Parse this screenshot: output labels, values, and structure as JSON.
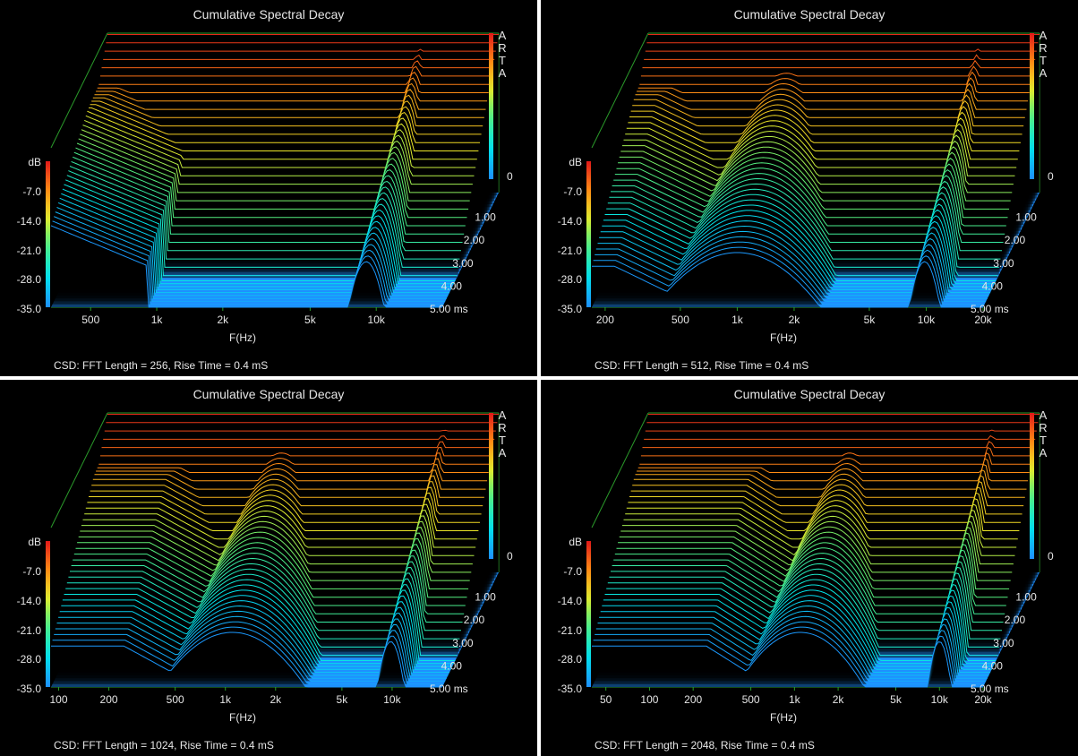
{
  "colors": {
    "background": "#000000",
    "frame": "#2a9a2a",
    "floor": "#1e90ff",
    "text": "#e6e6e6",
    "separator": "#ffffff"
  },
  "vendor_label": [
    "A",
    "R",
    "T",
    "A"
  ],
  "chart_data": [
    {
      "type": "waterfall",
      "title": "Cumulative Spectral Decay",
      "xlabel": "F(Hz)",
      "x_scale": "log",
      "xlim": [
        330,
        20000
      ],
      "x_ticks": [
        {
          "v": 500,
          "label": "500"
        },
        {
          "v": 1000,
          "label": "1k"
        },
        {
          "v": 2000,
          "label": "2k"
        },
        {
          "v": 5000,
          "label": "5k"
        },
        {
          "v": 10000,
          "label": "10k"
        }
      ],
      "x_max_label": "",
      "z_label": "dB",
      "z_ticks": [
        "-7.0",
        "-14.0",
        "-21.0",
        "-28.0",
        "-35.0"
      ],
      "zlim": [
        -35,
        0
      ],
      "time_ticks": [
        "0",
        "1.00",
        "2.00",
        "3.00",
        "4.00",
        "5.00 ms"
      ],
      "time_range_ms": [
        0,
        5
      ],
      "slices": 40,
      "resonances_hz": [
        1300,
        9000
      ],
      "fft_length": 256,
      "rise_time_ms": 0.4,
      "footer": "CSD: FFT Length = 256, Rise Time = 0.4 mS"
    },
    {
      "type": "waterfall",
      "title": "Cumulative Spectral Decay",
      "xlabel": "F(Hz)",
      "x_scale": "log",
      "xlim": [
        170,
        20000
      ],
      "x_ticks": [
        {
          "v": 200,
          "label": "200"
        },
        {
          "v": 500,
          "label": "500"
        },
        {
          "v": 1000,
          "label": "1k"
        },
        {
          "v": 2000,
          "label": "2k"
        },
        {
          "v": 5000,
          "label": "5k"
        },
        {
          "v": 10000,
          "label": "10k"
        },
        {
          "v": 20000,
          "label": "20k"
        }
      ],
      "x_max_label": "20k",
      "z_label": "dB",
      "z_ticks": [
        "-7.0",
        "-14.0",
        "-21.0",
        "-28.0",
        "-35.0"
      ],
      "zlim": [
        -35,
        0
      ],
      "time_ticks": [
        "0",
        "1.00",
        "2.00",
        "3.00",
        "4.00",
        "5.00 ms"
      ],
      "time_range_ms": [
        0,
        5
      ],
      "slices": 40,
      "resonances_hz": [
        1000,
        9800
      ],
      "fft_length": 512,
      "rise_time_ms": 0.4,
      "footer": "CSD: FFT Length = 512, Rise Time = 0.4 mS"
    },
    {
      "type": "waterfall",
      "title": "Cumulative Spectral Decay",
      "xlabel": "F(Hz)",
      "x_scale": "log",
      "xlim": [
        90,
        20000
      ],
      "x_ticks": [
        {
          "v": 100,
          "label": "100"
        },
        {
          "v": 200,
          "label": "200"
        },
        {
          "v": 500,
          "label": "500"
        },
        {
          "v": 1000,
          "label": "1k"
        },
        {
          "v": 2000,
          "label": "2k"
        },
        {
          "v": 5000,
          "label": "5k"
        },
        {
          "v": 10000,
          "label": "10k"
        }
      ],
      "x_max_label": "",
      "z_label": "dB",
      "z_ticks": [
        "-7.0",
        "-14.0",
        "-21.0",
        "-28.0",
        "-35.0"
      ],
      "zlim": [
        -35,
        0
      ],
      "time_ticks": [
        "0",
        "1.00",
        "2.00",
        "3.00",
        "4.00",
        "5.00 ms"
      ],
      "time_range_ms": [
        0,
        5
      ],
      "slices": 40,
      "resonances_hz": [
        1100,
        9800
      ],
      "fft_length": 1024,
      "rise_time_ms": 0.4,
      "footer": "CSD: FFT Length = 1024, Rise Time = 0.4 mS"
    },
    {
      "type": "waterfall",
      "title": "Cumulative Spectral Decay",
      "xlabel": "F(Hz)",
      "x_scale": "log",
      "xlim": [
        40,
        20000
      ],
      "x_ticks": [
        {
          "v": 50,
          "label": "50"
        },
        {
          "v": 100,
          "label": "100"
        },
        {
          "v": 200,
          "label": "200"
        },
        {
          "v": 500,
          "label": "500"
        },
        {
          "v": 1000,
          "label": "1k"
        },
        {
          "v": 2000,
          "label": "2k"
        },
        {
          "v": 5000,
          "label": "5k"
        },
        {
          "v": 10000,
          "label": "10k"
        },
        {
          "v": 20000,
          "label": "20k"
        }
      ],
      "x_max_label": "20k",
      "z_label": "dB",
      "z_ticks": [
        "-7.0",
        "-14.0",
        "-21.0",
        "-28.0",
        "-35.0"
      ],
      "zlim": [
        -35,
        0
      ],
      "time_ticks": [
        "0",
        "1.00",
        "2.00",
        "3.00",
        "4.00",
        "5.00 ms"
      ],
      "time_range_ms": [
        0,
        5
      ],
      "slices": 40,
      "resonances_hz": [
        1100,
        10000
      ],
      "fft_length": 2048,
      "rise_time_ms": 0.4,
      "footer": "CSD: FFT Length = 2048, Rise Time = 0.4 mS"
    }
  ]
}
